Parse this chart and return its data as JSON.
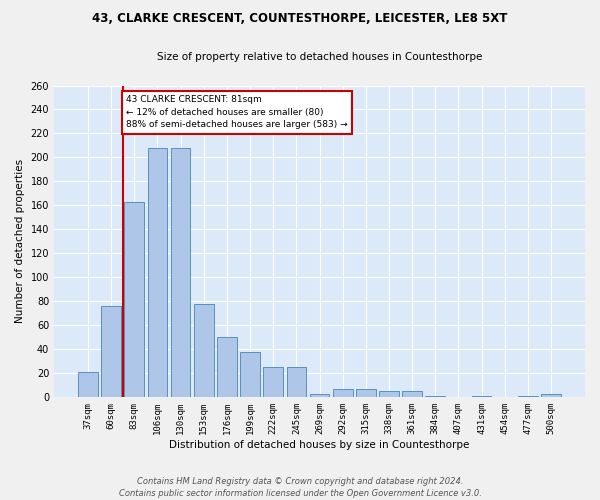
{
  "title": "43, CLARKE CRESCENT, COUNTESTHORPE, LEICESTER, LE8 5XT",
  "subtitle": "Size of property relative to detached houses in Countesthorpe",
  "xlabel": "Distribution of detached houses by size in Countesthorpe",
  "ylabel": "Number of detached properties",
  "bar_labels": [
    "37sqm",
    "60sqm",
    "83sqm",
    "106sqm",
    "130sqm",
    "153sqm",
    "176sqm",
    "199sqm",
    "222sqm",
    "245sqm",
    "269sqm",
    "292sqm",
    "315sqm",
    "338sqm",
    "361sqm",
    "384sqm",
    "407sqm",
    "431sqm",
    "454sqm",
    "477sqm",
    "500sqm"
  ],
  "bar_values": [
    21,
    76,
    163,
    208,
    208,
    78,
    50,
    38,
    25,
    25,
    3,
    7,
    7,
    5,
    5,
    1,
    0,
    1,
    0,
    1,
    3
  ],
  "bar_color": "#aec6e8",
  "bar_edge_color": "#5a8fc2",
  "background_color": "#dce9f8",
  "grid_color": "#ffffff",
  "vline_color": "#cc0000",
  "annotation_line1": "43 CLARKE CRESCENT: 81sqm",
  "annotation_line2": "← 12% of detached houses are smaller (80)",
  "annotation_line3": "88% of semi-detached houses are larger (583) →",
  "annotation_box_color": "#ffffff",
  "annotation_box_edge": "#cc0000",
  "footer": "Contains HM Land Registry data © Crown copyright and database right 2024.\nContains public sector information licensed under the Open Government Licence v3.0.",
  "ylim": [
    0,
    260
  ],
  "yticks": [
    0,
    20,
    40,
    60,
    80,
    100,
    120,
    140,
    160,
    180,
    200,
    220,
    240,
    260
  ],
  "fig_bg": "#f0f0f0"
}
